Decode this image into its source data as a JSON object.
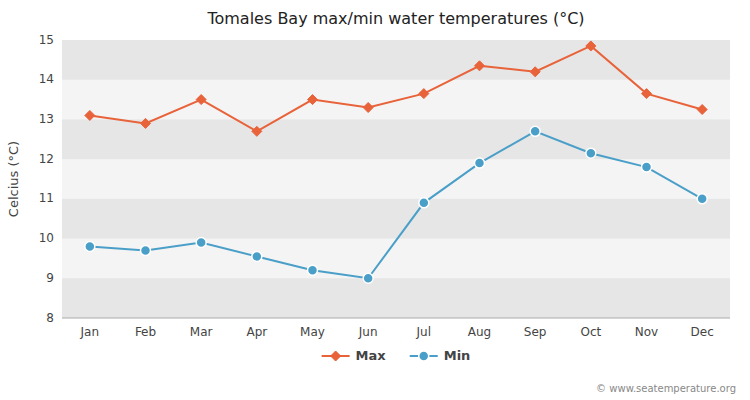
{
  "chart_data": {
    "type": "line",
    "title": "Tomales Bay max/min water temperatures (°C)",
    "y_label": "Celcius (°C)",
    "categories": [
      "Jan",
      "Feb",
      "Mar",
      "Apr",
      "May",
      "Jun",
      "Jul",
      "Aug",
      "Sep",
      "Oct",
      "Nov",
      "Dec"
    ],
    "series": [
      {
        "name": "Max",
        "color": "#e8623a",
        "marker": "diamond",
        "values": [
          13.1,
          12.9,
          13.5,
          12.7,
          13.5,
          13.3,
          13.65,
          14.35,
          14.2,
          14.85,
          13.65,
          13.25
        ]
      },
      {
        "name": "Min",
        "color": "#4a9fc8",
        "marker": "circle",
        "values": [
          9.8,
          9.7,
          9.9,
          9.55,
          9.2,
          9.0,
          10.9,
          11.9,
          12.7,
          12.15,
          11.8,
          11.0
        ]
      }
    ],
    "ylim": [
      8,
      15
    ],
    "yticks": [
      8,
      9,
      10,
      11,
      12,
      13,
      14,
      15
    ],
    "grid": false,
    "legend": "bottom",
    "annotations": [
      "© www.seatemperature.org"
    ]
  }
}
